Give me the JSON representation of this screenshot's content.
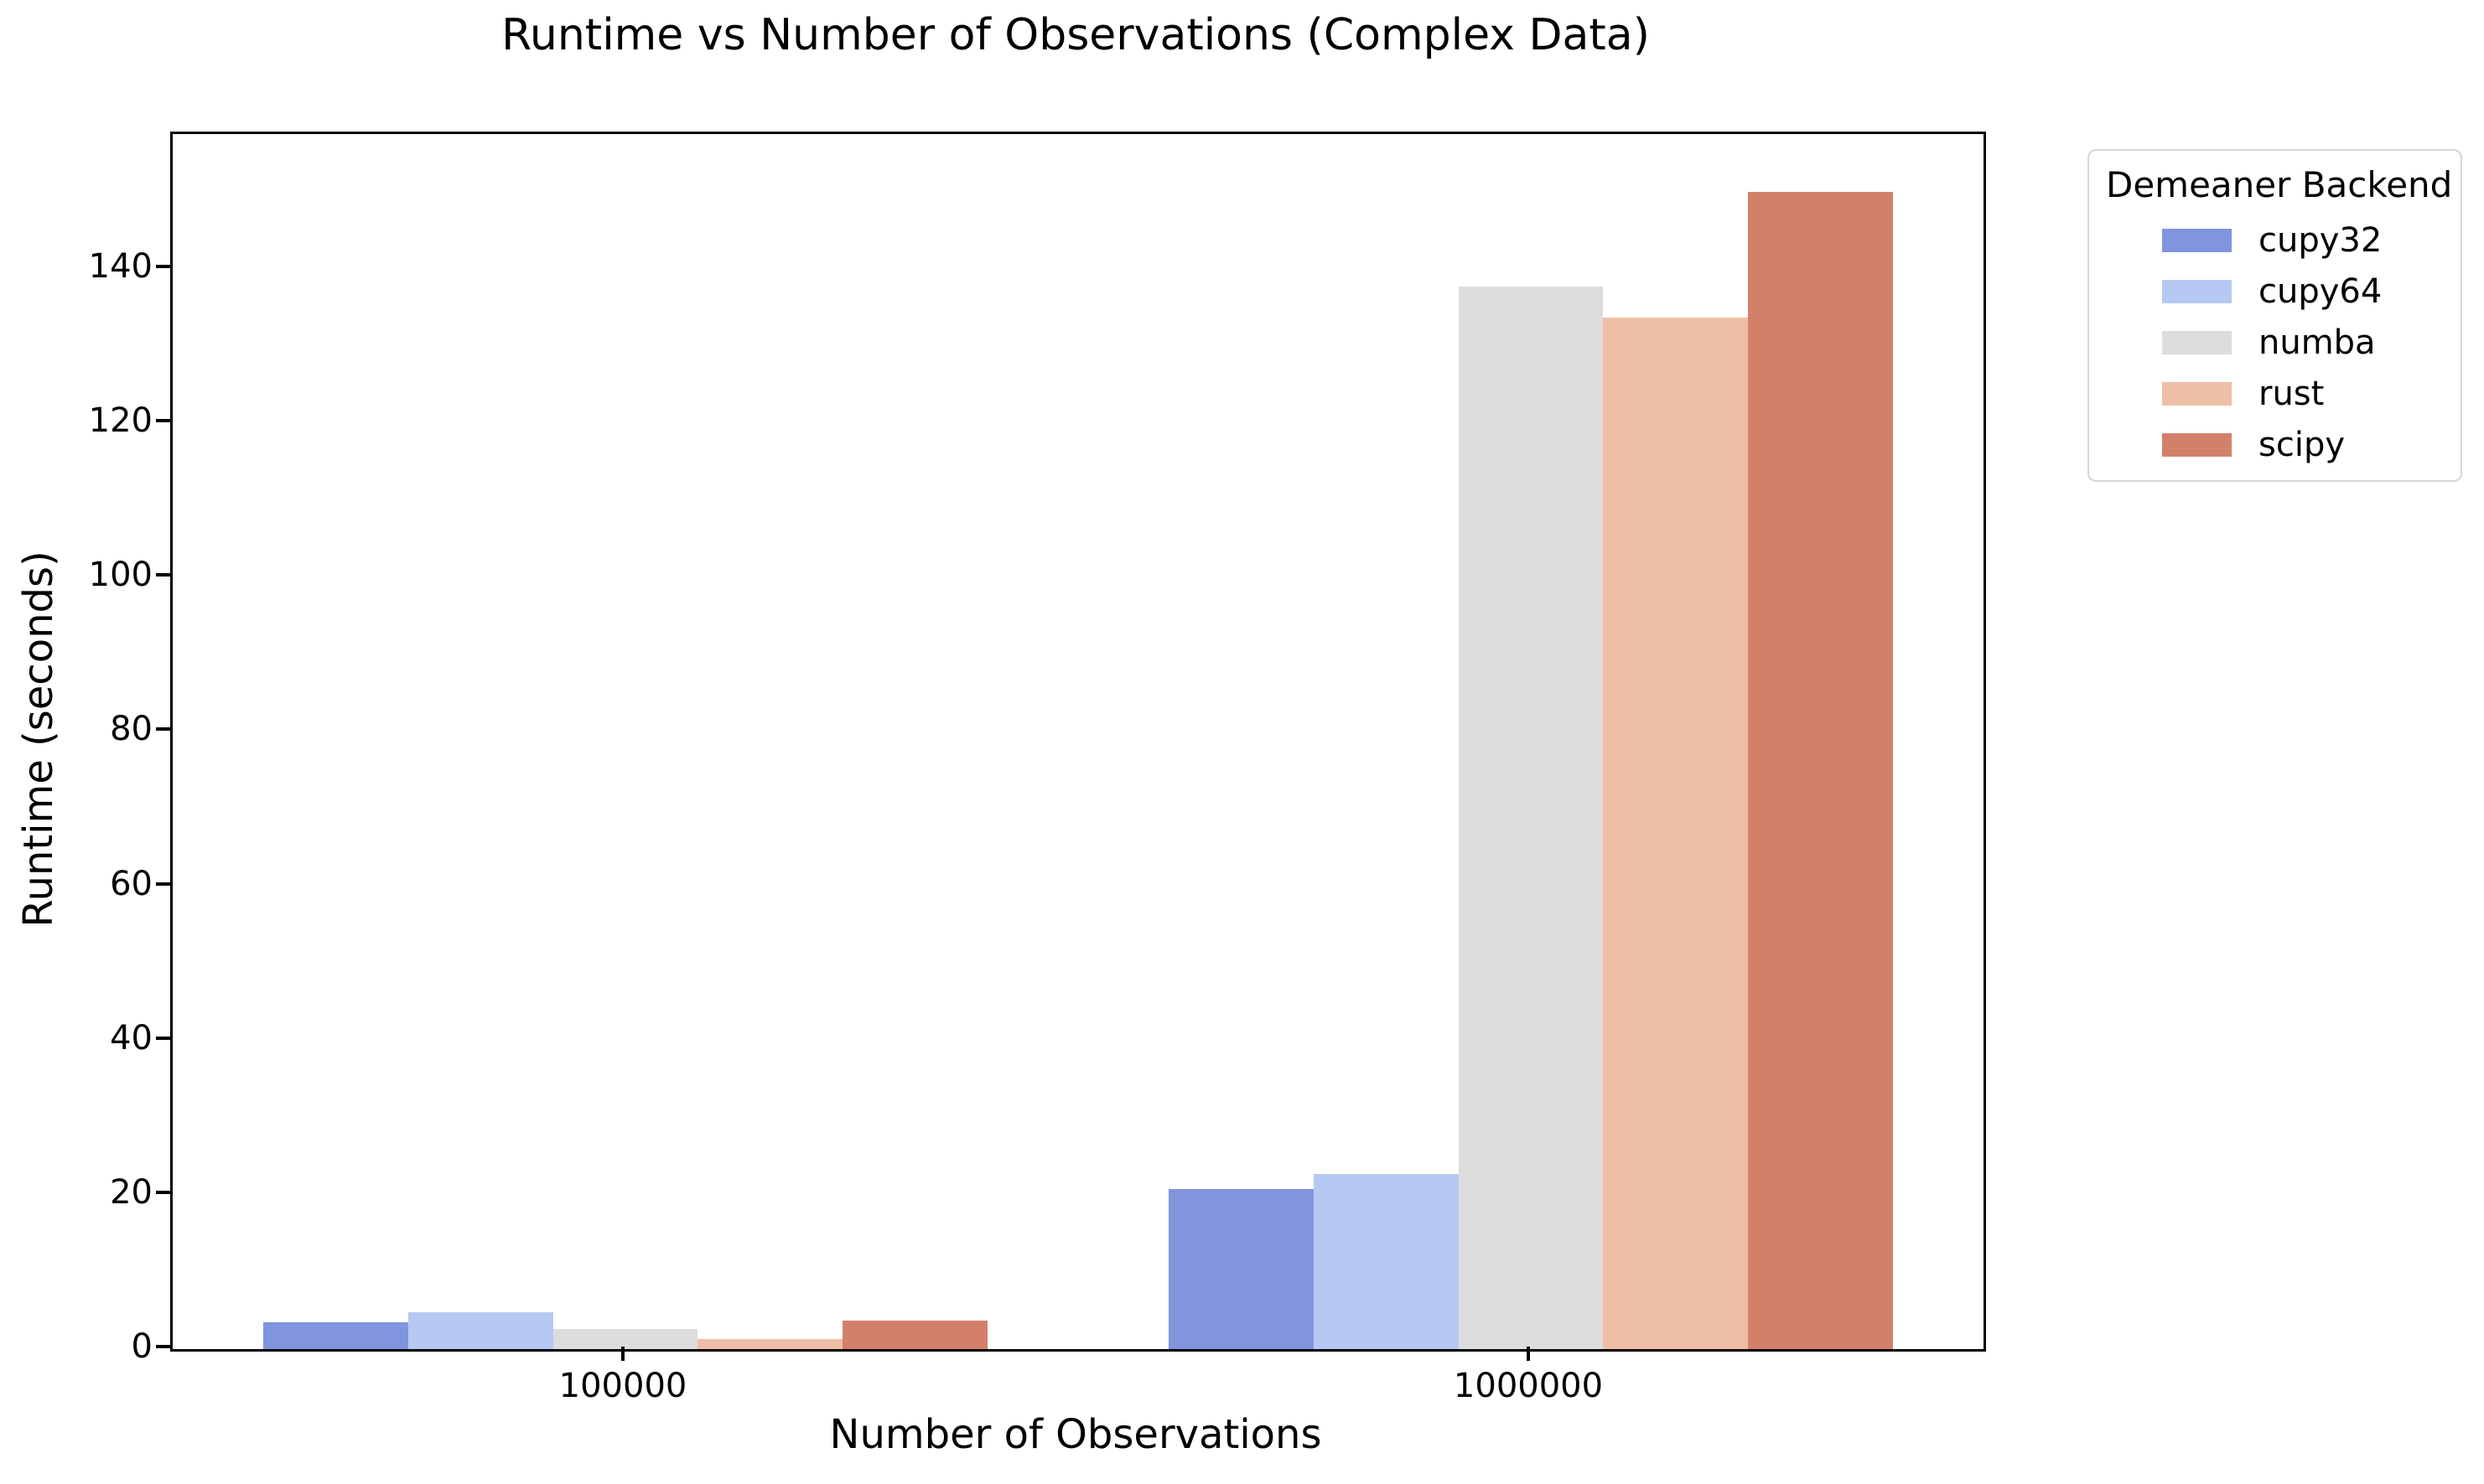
{
  "chart_data": {
    "type": "bar",
    "title": "Runtime vs Number of Observations (Complex Data)",
    "xlabel": "Number of Observations",
    "ylabel": "Runtime (seconds)",
    "categories": [
      "100000",
      "1000000"
    ],
    "series": [
      {
        "name": "cupy32",
        "color": "#8095de",
        "values": [
          3.5,
          20.7
        ]
      },
      {
        "name": "cupy64",
        "color": "#b6c9f2",
        "values": [
          4.8,
          22.7
        ]
      },
      {
        "name": "numba",
        "color": "#dcdcdc",
        "values": [
          2.6,
          137.7
        ]
      },
      {
        "name": "rust",
        "color": "#eebea6",
        "values": [
          1.3,
          133.7
        ]
      },
      {
        "name": "scipy",
        "color": "#d3806b",
        "values": [
          3.7,
          150.0
        ]
      }
    ],
    "ylim": [
      0,
      157.5
    ],
    "yticks": [
      0,
      20,
      40,
      60,
      80,
      100,
      120,
      140
    ],
    "legend_title": "Demeaner Backend",
    "legend_position": "upper right, outside axes",
    "grid": false,
    "group_width_fraction": 0.8
  }
}
